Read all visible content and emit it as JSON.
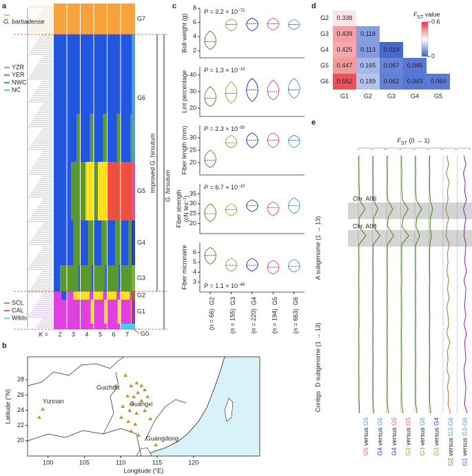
{
  "panel_labels": [
    "a",
    "b",
    "c",
    "d",
    "e"
  ],
  "a": {
    "groups": [
      "G7",
      "G6",
      "G5",
      "G4",
      "G3",
      "G2",
      "G1",
      "G0"
    ],
    "group_colors": [
      "#f7a23a",
      "#4a9ae0",
      "#e8509a",
      "#1f3fd8",
      "#7ab830",
      "#a0662a",
      "#9b30d0",
      "#40d0f0"
    ],
    "outgroup": "G. barbadense",
    "regions": [
      {
        "name": "YZR",
        "color": "#e8509a"
      },
      {
        "name": "YER",
        "color": "#2255e0"
      },
      {
        "name": "NWC",
        "color": "#1a7a2a"
      },
      {
        "name": "NC",
        "color": "#40c040"
      }
    ],
    "types": [
      {
        "name": "SCL",
        "color": "#a0662a"
      },
      {
        "name": "CAL",
        "color": "#9b30d0"
      },
      {
        "name": "Wilds",
        "color": "#40d0f0"
      }
    ],
    "k_label": "K =",
    "k_values": [
      2,
      3,
      4,
      5,
      6,
      7
    ],
    "improved": "Improved G. hirsutum",
    "hirsutum": "G. hirsutum"
  },
  "b": {
    "type": "scatter",
    "xlabel": "Longitude (°E)",
    "ylabel": "Latitude (°N)",
    "xlim": [
      97.2,
      129.1
    ],
    "ylim": [
      18,
      31
    ],
    "xticks": [
      100,
      105,
      110,
      115,
      120
    ],
    "yticks": [
      20,
      22,
      24,
      26,
      28
    ],
    "color": "#c8922a",
    "places": [
      "Guizhou",
      "Yunnan",
      "Guangxi",
      "Guangdong"
    ],
    "lon": [
      110.66,
      111.42,
      112.18,
      112.84,
      113.31,
      112.37,
      111.8,
      110.94,
      111.61,
      112.84,
      113.69,
      110.28,
      111.23,
      112.18,
      113.31,
      110.09,
      111.04,
      111.99,
      111.42,
      112.46,
      114.07,
      114.83,
      99.29,
      98.81,
      109.33
    ],
    "lat": [
      28.56,
      27.21,
      27.57,
      27.21,
      26.67,
      26.31,
      25.77,
      25.86,
      24.86,
      25.23,
      25.77,
      24.5,
      23.96,
      23.6,
      23.96,
      23.06,
      22.52,
      22.16,
      21.26,
      20.72,
      22.88,
      19.46,
      24.14,
      23.06,
      27.21
    ]
  },
  "c": {
    "type": "violin",
    "groups": [
      "G2",
      "G3",
      "G4",
      "G5",
      "G6"
    ],
    "n": [
      66,
      155,
      220,
      194,
      663
    ],
    "n_open": "(",
    "n_symbol": "n",
    "n_equals": " = ",
    "n_close": ")",
    "p_symbol": "P",
    "traits": [
      {
        "ylabel": "Boll weight (g)",
        "p_text": " = 3.2 × 10",
        "p_exp": "−72",
        "ylim": [
          1,
          8
        ],
        "yticks": [
          2,
          4,
          6,
          8
        ],
        "median": [
          3.3,
          5.7,
          5.8,
          5.8,
          5.7
        ],
        "min": [
          2.2,
          4.8,
          4.8,
          4.9,
          5.0
        ],
        "max": [
          4.8,
          6.5,
          6.6,
          6.6,
          6.4
        ]
      },
      {
        "ylabel": "Lint percentage",
        "p_text": " = 1.3 × 10",
        "p_exp": "−14",
        "ylim": [
          15,
          45
        ],
        "yticks": [
          20,
          30,
          40
        ],
        "median": [
          26,
          29,
          31,
          30,
          31
        ],
        "min": [
          21,
          23,
          24,
          25,
          26
        ],
        "max": [
          33,
          36,
          38,
          37,
          38
        ]
      },
      {
        "ylabel": "Fiber length (mm)",
        "p_text": " = 2.3 × 10",
        "p_exp": "−50",
        "ylim": [
          15,
          35
        ],
        "yticks": [
          20,
          25,
          30
        ],
        "median": [
          21,
          28,
          29,
          29,
          29
        ],
        "min": [
          18,
          26,
          26,
          26,
          26
        ],
        "max": [
          25,
          31,
          32,
          32,
          31
        ]
      },
      {
        "ylabel": "Fiber strength",
        "ylabel2": [
          "(cN tex",
          "−1",
          ")"
        ],
        "p_text": " = 6.7 × 10",
        "p_exp": "−10",
        "ylim": [
          15,
          40
        ],
        "yticks": [
          20,
          25,
          30,
          35
        ],
        "median": [
          25,
          27,
          29,
          28,
          29
        ],
        "min": [
          21,
          24,
          26,
          24,
          25
        ],
        "max": [
          30,
          30,
          32,
          31,
          33
        ]
      },
      {
        "ylabel": "Fiber micronaire",
        "p_text": " = 1.1 × 10",
        "p_exp": "−49",
        "p_position": "bottom",
        "ylim": [
          2,
          7
        ],
        "yticks": [
          3,
          4,
          5,
          6
        ],
        "median": [
          5.7,
          4.7,
          4.7,
          4.5,
          4.6
        ],
        "min": [
          4.8,
          4.1,
          4.1,
          3.8,
          4.0
        ],
        "max": [
          6.5,
          5.4,
          5.4,
          5.2,
          5.3
        ]
      }
    ]
  },
  "d": {
    "type": "heatmap",
    "title_f": "F",
    "title_sub": "ST",
    "title_rest": " value",
    "rows": [
      "G2",
      "G3",
      "G4",
      "G5",
      "G6"
    ],
    "cols": [
      "G1",
      "G2",
      "G3",
      "G4",
      "G5"
    ],
    "values": [
      [
        0.338
      ],
      [
        0.439,
        0.118
      ],
      [
        0.425,
        0.113,
        0.019
      ],
      [
        0.447,
        0.165,
        0.067,
        0.045
      ],
      [
        0.552,
        0.189,
        0.062,
        0.043,
        0.05
      ]
    ],
    "value_labels": [
      [
        "0.338"
      ],
      [
        "0.439",
        "0.118"
      ],
      [
        "0.425",
        "0.113",
        "0.019"
      ],
      [
        "0.447",
        "0.165",
        "0.067",
        "0.045"
      ],
      [
        "0.552",
        "0.189",
        "0.062",
        "0.043",
        "0.050"
      ]
    ],
    "scale": [
      0,
      0.6
    ],
    "legend_ticks": [
      0.6,
      0
    ],
    "color_low": "#3a5fcd",
    "color_mid": "#ffffff",
    "color_high": "#e8303a"
  },
  "e": {
    "type": "line",
    "title_f": "F",
    "title_sub": "ST",
    "title_rest": " (0 → 1)",
    "xlim": [
      0,
      1
    ],
    "versus": " versus ",
    "regions": [
      "A subgenome (1 → 13)",
      "D subgenome (1 → 13)",
      "Contigs"
    ],
    "highlights": [
      "Chr. A06",
      "Chr. A08"
    ],
    "tracks": [
      {
        "a": "G5",
        "b": "G6",
        "a_color": "#e8509a",
        "b_color": "#4a9ae0",
        "color": "#4a8a1a",
        "values": [
          0.05,
          0.04,
          0.06,
          0.05,
          0.08,
          0.1,
          0.55,
          0.07,
          0.06,
          0.6,
          0.05,
          0.04,
          0.06,
          0.05,
          0.04,
          0.05,
          0.06,
          0.04,
          0.05,
          0.07,
          0.04,
          0.05,
          0.06,
          0.05,
          0.04,
          0.05,
          0.06,
          0.05,
          0.08,
          0.1
        ]
      },
      {
        "a": "G4",
        "b": "G6",
        "a_color": "#1f3fd8",
        "b_color": "#4a9ae0",
        "color": "#4a8a1a",
        "values": [
          0.04,
          0.05,
          0.04,
          0.06,
          0.05,
          0.08,
          0.45,
          0.1,
          0.08,
          0.62,
          0.06,
          0.05,
          0.04,
          0.05,
          0.06,
          0.04,
          0.05,
          0.04,
          0.06,
          0.05,
          0.04,
          0.05,
          0.04,
          0.06,
          0.05,
          0.04,
          0.05,
          0.04,
          0.06,
          0.12
        ]
      },
      {
        "a": "G4",
        "b": "G5",
        "a_color": "#1f3fd8",
        "b_color": "#e8509a",
        "color": "#4a8a1a",
        "values": [
          0.06,
          0.05,
          0.07,
          0.06,
          0.05,
          0.1,
          0.5,
          0.12,
          0.08,
          0.58,
          0.07,
          0.06,
          0.05,
          0.06,
          0.07,
          0.05,
          0.06,
          0.05,
          0.07,
          0.06,
          0.05,
          0.06,
          0.05,
          0.07,
          0.06,
          0.05,
          0.06,
          0.05,
          0.07,
          0.15
        ]
      },
      {
        "a": "G3",
        "b": "G5",
        "a_color": "#7ab830",
        "b_color": "#e8509a",
        "color": "#4a8a1a",
        "values": [
          0.08,
          0.06,
          0.1,
          0.07,
          0.09,
          0.15,
          0.6,
          0.2,
          0.1,
          0.65,
          0.09,
          0.07,
          0.08,
          0.07,
          0.1,
          0.06,
          0.08,
          0.07,
          0.09,
          0.08,
          0.06,
          0.07,
          0.08,
          0.09,
          0.07,
          0.06,
          0.08,
          0.07,
          0.09,
          0.2
        ]
      },
      {
        "a": "G3",
        "b": "G6",
        "a_color": "#7ab830",
        "b_color": "#4a9ae0",
        "color": "#4a8a1a",
        "values": [
          0.07,
          0.05,
          0.08,
          0.06,
          0.07,
          0.12,
          0.55,
          0.15,
          0.09,
          0.4,
          0.08,
          0.06,
          0.07,
          0.06,
          0.08,
          0.05,
          0.07,
          0.06,
          0.08,
          0.07,
          0.05,
          0.06,
          0.07,
          0.08,
          0.06,
          0.05,
          0.07,
          0.06,
          0.08,
          0.18
        ]
      },
      {
        "a": "G3",
        "b": "G4",
        "a_color": "#7ab830",
        "b_color": "#1f3fd8",
        "color": "#4a8a1a",
        "values": [
          0.06,
          0.05,
          0.07,
          0.05,
          0.06,
          0.1,
          0.3,
          0.12,
          0.08,
          0.2,
          0.07,
          0.05,
          0.06,
          0.05,
          0.07,
          0.05,
          0.06,
          0.05,
          0.07,
          0.06,
          0.05,
          0.06,
          0.06,
          0.07,
          0.05,
          0.05,
          0.06,
          0.05,
          0.07,
          0.15
        ]
      },
      {
        "a": "G2",
        "b": "G3-G6",
        "a_color": "#a0662a",
        "b_color": "#4a9ae0",
        "color": "#b07a3a",
        "values": [
          0.3,
          0.45,
          0.25,
          0.5,
          0.35,
          0.4,
          0.2,
          0.45,
          0.3,
          0.25,
          0.5,
          0.35,
          0.4,
          0.3,
          0.45,
          0.35,
          0.5,
          0.3,
          0.4,
          0.45,
          0.3,
          0.55,
          0.35,
          0.4,
          0.3,
          0.5,
          0.35,
          0.45,
          0.4,
          0.6
        ]
      },
      {
        "a": "G1",
        "b": "G3-G6",
        "a_color": "#9b30d0",
        "b_color": "#4a9ae0",
        "color": "#9030b0",
        "values": [
          0.55,
          0.7,
          0.5,
          0.65,
          0.6,
          0.75,
          0.5,
          0.7,
          0.6,
          0.55,
          0.7,
          0.65,
          0.6,
          0.75,
          0.55,
          0.7,
          0.65,
          0.6,
          0.7,
          0.55,
          0.75,
          0.6,
          0.65,
          0.7,
          0.55,
          0.6,
          0.7,
          0.65,
          0.6,
          0.8
        ]
      }
    ]
  }
}
